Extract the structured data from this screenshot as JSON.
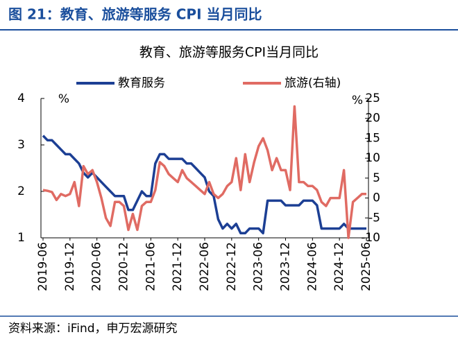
{
  "header": "图 21：教育、旅游等服务 CPI 当月同比",
  "footer": "资料来源：iFind，申万宏源研究",
  "chart_data": {
    "type": "line",
    "title": "教育、旅游等服务CPI当月同比",
    "y_label": "%",
    "y2_label": "%",
    "categories": [
      "2019-06",
      null,
      null,
      null,
      null,
      null,
      "2019-12",
      null,
      null,
      null,
      null,
      null,
      "2020-06",
      null,
      null,
      null,
      null,
      null,
      "2020-12",
      null,
      null,
      null,
      null,
      null,
      "2021-06",
      null,
      null,
      null,
      null,
      null,
      "2021-12",
      null,
      null,
      null,
      null,
      null,
      "2022-06",
      null,
      null,
      null,
      null,
      null,
      "2022-12",
      null,
      null,
      null,
      null,
      null,
      "2023-06",
      null,
      null,
      null,
      null,
      null,
      "2023-12",
      null,
      null,
      null,
      null,
      null,
      "2024-06",
      null,
      null,
      null,
      null,
      null,
      "2024-12",
      null,
      null,
      null,
      null,
      null,
      "2025-06"
    ],
    "series": [
      {
        "name": "教育服务",
        "color": "#1c3f94",
        "axis": "y",
        "values": [
          3.2,
          3.1,
          3.1,
          3.0,
          2.9,
          2.8,
          2.8,
          2.7,
          2.6,
          2.4,
          2.3,
          2.4,
          2.3,
          2.2,
          2.1,
          2.0,
          1.9,
          1.9,
          1.9,
          1.6,
          1.6,
          1.8,
          2.0,
          1.9,
          1.9,
          2.6,
          2.8,
          2.8,
          2.7,
          2.7,
          2.7,
          2.7,
          2.6,
          2.6,
          2.5,
          2.4,
          2.3,
          2.0,
          1.9,
          1.4,
          1.2,
          1.3,
          1.2,
          1.3,
          1.1,
          1.1,
          1.2,
          1.2,
          1.2,
          1.1,
          1.8,
          1.8,
          1.8,
          1.8,
          1.7,
          1.7,
          1.7,
          1.7,
          1.8,
          1.8,
          1.8,
          1.7,
          1.2,
          1.2,
          1.2,
          1.2,
          1.2,
          1.3,
          1.2,
          1.2,
          1.2,
          1.2,
          1.2
        ]
      },
      {
        "name": "旅游(右轴)",
        "color": "#e06b63",
        "axis": "y2",
        "values": [
          2,
          1.8,
          1.5,
          -0.5,
          1,
          0.5,
          1,
          4,
          -2,
          8,
          6,
          7,
          4,
          0,
          -5,
          -7,
          -1,
          -1,
          -2,
          -8,
          -4,
          -8,
          -2,
          -1,
          -1,
          2,
          9,
          8,
          6,
          5,
          4,
          7,
          5,
          4,
          3,
          2,
          1,
          4,
          1,
          0,
          1,
          3,
          4,
          10,
          2,
          11,
          4,
          9,
          13,
          15,
          12,
          7,
          10,
          7,
          7,
          2,
          23,
          4,
          4,
          3,
          3,
          2,
          -1,
          -2,
          0,
          0,
          0,
          7,
          -10,
          -1,
          0,
          1,
          1
        ]
      }
    ],
    "ylim": [
      1,
      4
    ],
    "yticks": [
      1,
      2,
      3,
      4
    ],
    "y2lim": [
      -10,
      25
    ],
    "y2ticks": [
      -10,
      -5,
      0,
      5,
      10,
      15,
      20,
      25
    ]
  }
}
